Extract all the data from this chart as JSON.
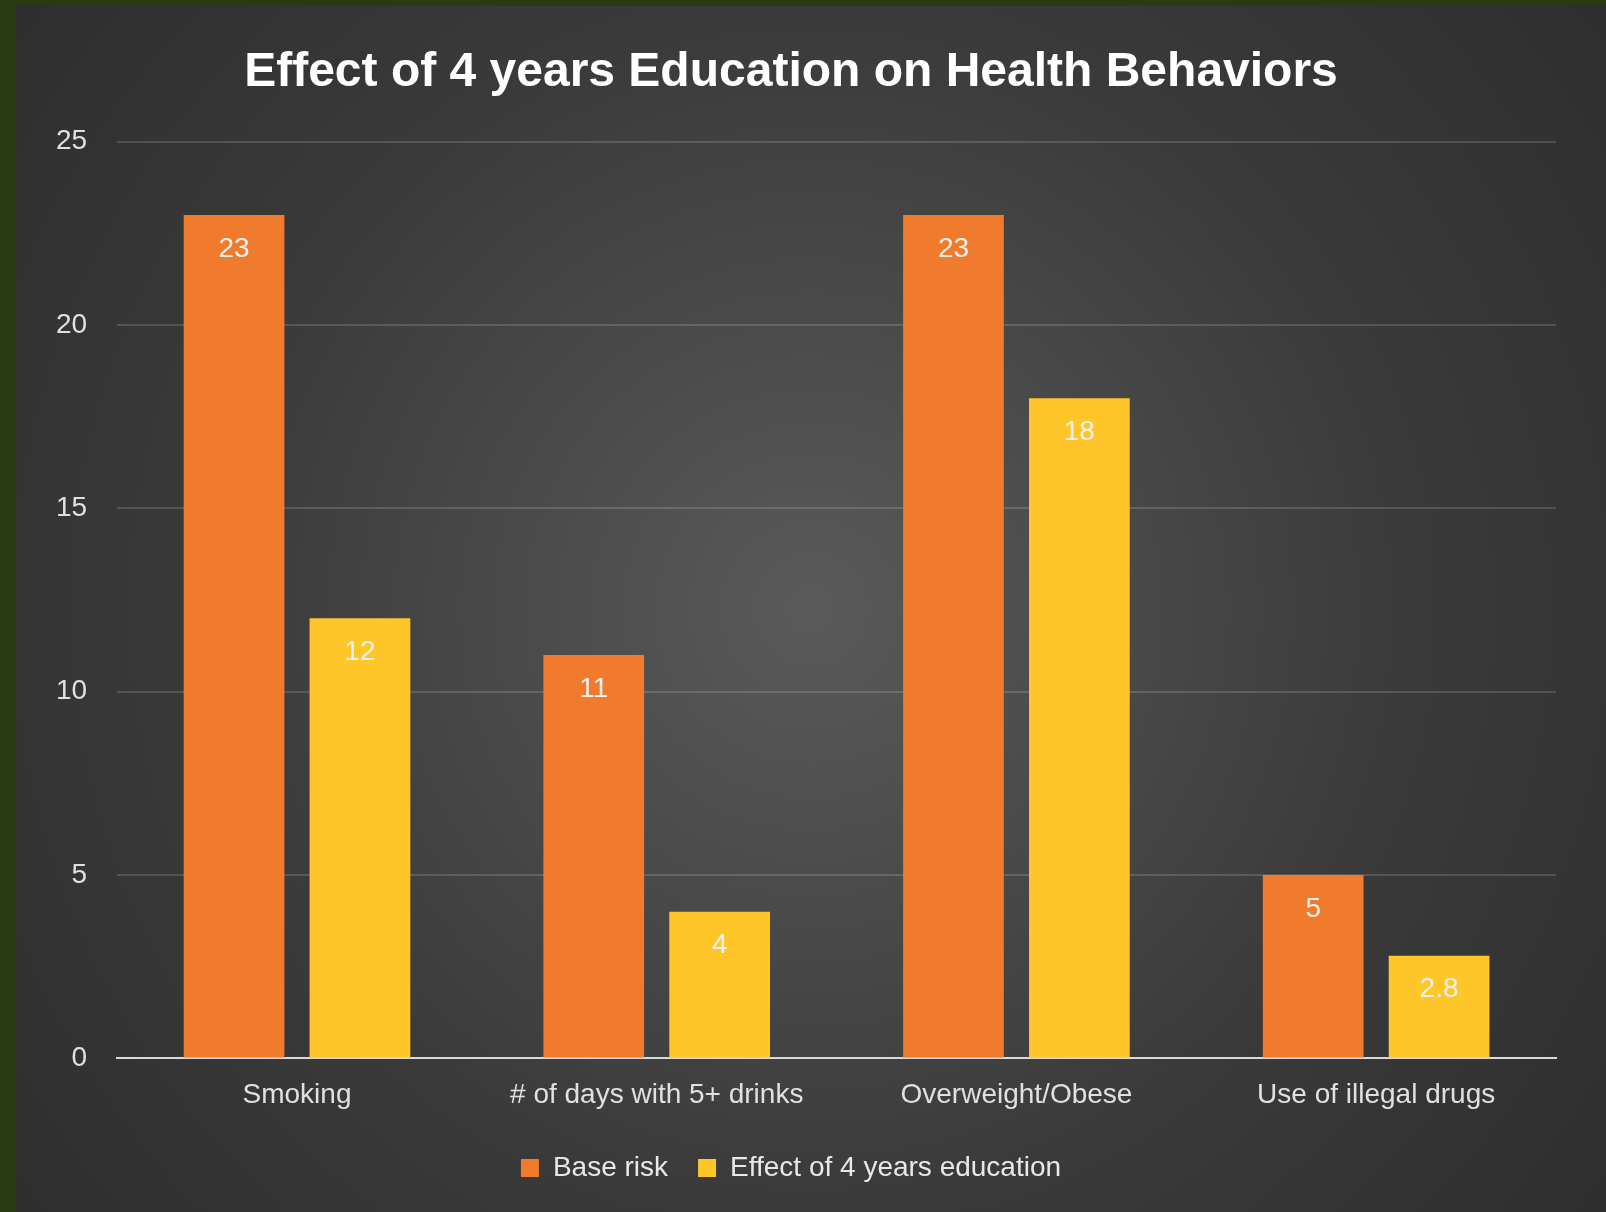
{
  "chart_data": {
    "type": "bar",
    "title": "Effect of 4 years Education on Health Behaviors",
    "categories": [
      "Smoking",
      "# of days with 5+ drinks",
      "Overweight/Obese",
      "Use of illegal drugs"
    ],
    "series": [
      {
        "name": "Base risk",
        "color": "#f07b2c",
        "values": [
          23,
          11,
          23,
          5
        ]
      },
      {
        "name": "Effect of 4 years education",
        "color": "#ffc629",
        "values": [
          12,
          4,
          18,
          2.8
        ]
      }
    ],
    "ylim": [
      0,
      25
    ],
    "yticks": [
      0,
      5,
      10,
      15,
      20,
      25
    ],
    "grid": "y",
    "legend": "bottom",
    "data_labels": true
  }
}
